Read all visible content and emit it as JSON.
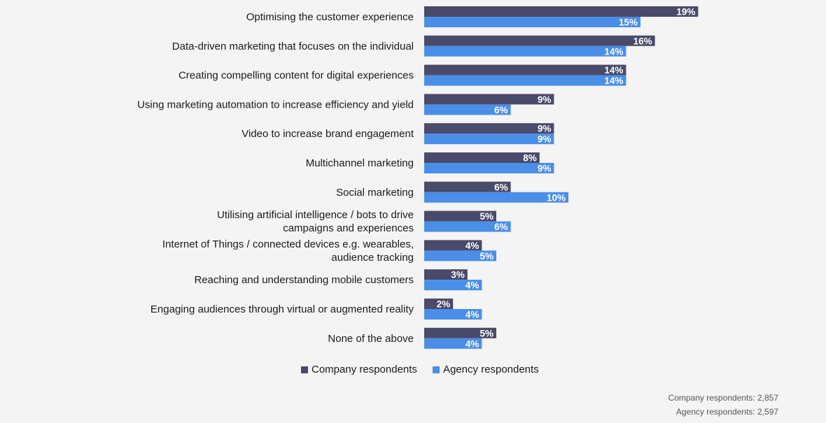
{
  "chart_data": {
    "type": "bar",
    "orientation": "horizontal",
    "categories": [
      [
        "Optimising the customer experience"
      ],
      [
        "Data-driven marketing that focuses on the individual"
      ],
      [
        "Creating compelling content for digital experiences"
      ],
      [
        "Using marketing automation to increase efficiency and yield"
      ],
      [
        "Video to increase brand engagement"
      ],
      [
        "Multichannel marketing"
      ],
      [
        "Social marketing"
      ],
      [
        "Utilising artificial intelligence / bots to drive",
        "campaigns and experiences"
      ],
      [
        "Internet of Things / connected devices e.g. wearables,",
        "audience tracking"
      ],
      [
        "Reaching and understanding mobile customers"
      ],
      [
        "Engaging audiences through virtual or augmented reality"
      ],
      [
        "None of the above"
      ]
    ],
    "series": [
      {
        "name": "Company respondents",
        "color": "#4a4a6a",
        "values": [
          19,
          16,
          14,
          9,
          9,
          8,
          6,
          5,
          4,
          3,
          2,
          5
        ]
      },
      {
        "name": "Agency respondents",
        "color": "#4a8ee8",
        "values": [
          15,
          14,
          14,
          6,
          9,
          9,
          10,
          6,
          5,
          4,
          4,
          4
        ]
      }
    ],
    "value_suffix": "%",
    "legend_position": "bottom",
    "grid": false
  },
  "footnote": {
    "company": "Company respondents: 2,857",
    "agency": "Agency respondents: 2,597"
  }
}
